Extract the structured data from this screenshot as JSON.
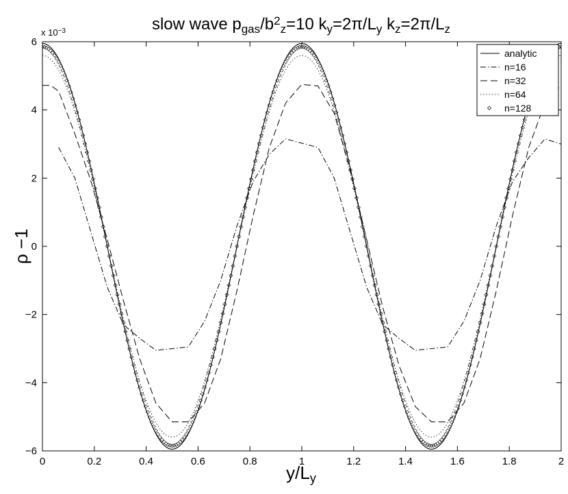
{
  "chart_data": {
    "type": "line",
    "title": {
      "parts": [
        {
          "t": "slow wave p"
        },
        {
          "t": "gas",
          "sub": true
        },
        {
          "t": "/b"
        },
        {
          "t": "2",
          "sup": true
        },
        {
          "t": "z",
          "sub": true
        },
        {
          "t": "=10  k"
        },
        {
          "t": "y",
          "sub": true
        },
        {
          "t": "=2π/L"
        },
        {
          "t": "y",
          "sub": true
        },
        {
          "t": "  k"
        },
        {
          "t": "z",
          "sub": true
        },
        {
          "t": "=2π/L"
        },
        {
          "t": "z",
          "sub": true
        }
      ]
    },
    "xlabel": {
      "main": "y/L",
      "sub": "y"
    },
    "ylabel": "ρ −1",
    "y_multiplier": {
      "base": "x 10",
      "exp": "−3"
    },
    "xlim": [
      0,
      2
    ],
    "ylim": [
      -6,
      6
    ],
    "x_ticks": [
      0,
      0.2,
      0.4,
      0.6,
      0.8,
      1,
      1.2,
      1.4,
      1.6,
      1.8,
      2
    ],
    "x_tick_labels": [
      "0",
      "0.2",
      "0.4",
      "0.6",
      "0.8",
      "1",
      "1.2",
      "1.4",
      "1.6",
      "1.8",
      "2"
    ],
    "y_ticks": [
      -6,
      -4,
      -2,
      0,
      2,
      4,
      6
    ],
    "y_tick_labels": [
      "−6",
      "−4",
      "−2",
      "0",
      "2",
      "4",
      "6"
    ],
    "grid": false,
    "legend_position": "top-right",
    "series": [
      {
        "name": "analytic",
        "style": "solid",
        "amplitude": 5.95,
        "x_start": 0,
        "x_end": 2,
        "x_step": 0.005
      },
      {
        "name": "n=16",
        "style": "dashdot",
        "amplitude": 3.1,
        "x_start": 0.0625,
        "x_end": 2,
        "x_step": 0.0625,
        "points": [
          [
            0.0625,
            2.9
          ],
          [
            0.125,
            2.0
          ],
          [
            0.1875,
            0.4
          ],
          [
            0.25,
            -1.2
          ],
          [
            0.3125,
            -2.3
          ],
          [
            0.375,
            -2.7
          ],
          [
            0.4375,
            -3.05
          ],
          [
            0.5625,
            -2.95
          ],
          [
            0.625,
            -2.2
          ],
          [
            0.6875,
            -1.0
          ],
          [
            0.75,
            0.6
          ],
          [
            0.8125,
            1.9
          ],
          [
            0.875,
            2.7
          ],
          [
            0.9375,
            3.15
          ],
          [
            1.0625,
            2.9
          ],
          [
            1.125,
            2.0
          ],
          [
            1.1875,
            0.4
          ],
          [
            1.25,
            -1.2
          ],
          [
            1.3125,
            -2.3
          ],
          [
            1.375,
            -2.7
          ],
          [
            1.4375,
            -3.05
          ],
          [
            1.5625,
            -2.95
          ],
          [
            1.625,
            -2.2
          ],
          [
            1.6875,
            -1.0
          ],
          [
            1.75,
            0.6
          ],
          [
            1.8125,
            1.9
          ],
          [
            1.875,
            2.6
          ],
          [
            1.9375,
            3.15
          ],
          [
            2.0,
            3.0
          ]
        ]
      },
      {
        "name": "n=32",
        "style": "dashed",
        "amplitude": 4.75,
        "x_start": 0,
        "x_end": 2,
        "x_step": 0.03125,
        "points": [
          [
            0.0,
            4.72
          ],
          [
            0.03125,
            4.72
          ],
          [
            0.0625,
            4.55
          ],
          [
            0.125,
            3.3
          ],
          [
            0.1875,
            1.9
          ],
          [
            0.25,
            0.2
          ],
          [
            0.3125,
            -1.6
          ],
          [
            0.375,
            -3.3
          ],
          [
            0.4375,
            -4.6
          ],
          [
            0.5,
            -5.15
          ],
          [
            0.5625,
            -5.15
          ],
          [
            0.625,
            -4.6
          ],
          [
            0.6875,
            -3.3
          ],
          [
            0.75,
            -1.3
          ],
          [
            0.8125,
            0.9
          ],
          [
            0.875,
            2.9
          ],
          [
            0.9375,
            4.2
          ],
          [
            1.0,
            4.75
          ],
          [
            1.0625,
            4.7
          ],
          [
            1.125,
            3.9
          ],
          [
            1.1875,
            2.2
          ],
          [
            1.25,
            0.2
          ],
          [
            1.3125,
            -1.8
          ],
          [
            1.375,
            -3.5
          ],
          [
            1.4375,
            -4.7
          ],
          [
            1.5,
            -5.15
          ],
          [
            1.5625,
            -5.15
          ],
          [
            1.625,
            -4.6
          ],
          [
            1.6875,
            -3.3
          ],
          [
            1.75,
            -1.3
          ],
          [
            1.8125,
            0.9
          ],
          [
            1.875,
            2.9
          ],
          [
            1.9375,
            4.2
          ],
          [
            2.0,
            4.72
          ]
        ]
      },
      {
        "name": "n=64",
        "style": "dotted",
        "amplitude": 5.6,
        "x_start": 0,
        "x_end": 2,
        "x_step": 0.015625
      },
      {
        "name": "n=128",
        "style": "diamond",
        "amplitude": 5.85,
        "x_start": 0,
        "x_end": 2,
        "x_step": 0.0078125
      }
    ]
  }
}
